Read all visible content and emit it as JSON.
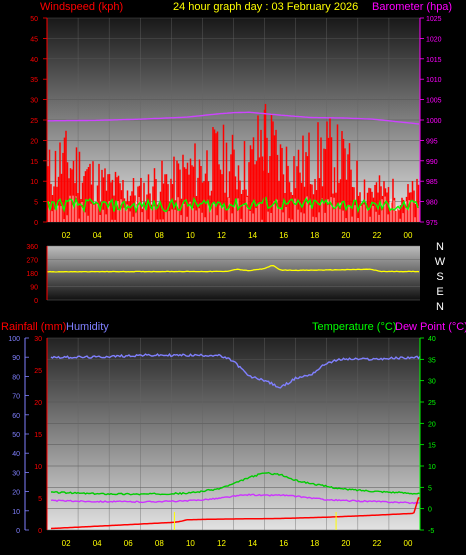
{
  "header": {
    "left": "Windspeed (kph)",
    "center": "24 hour graph day : 03 February 2026",
    "right": "Barometer (hpa)"
  },
  "section3": {
    "rain_label": "Rainfall (mm)",
    "humidity_label": "Humidity",
    "temp_label": "Temperature (°C)",
    "dew_label": "Dew Point (°C)"
  },
  "compass": [
    "N",
    "W",
    "S",
    "E",
    "N"
  ],
  "colors": {
    "wind": "#ff0000",
    "gust": "#ffffff",
    "avg_wind": "#00ff00",
    "barometer": "#cc44ff",
    "direction": "#ffff00",
    "rain": "#ff0000",
    "humidity": "#8080ff",
    "temperature": "#00cc00",
    "dewpoint": "#cc33ff",
    "rain_hour_marker": "#ffff00",
    "axis_left": "#ff0000",
    "axis_right": "#ff00ff",
    "axis_time": "#ffff00"
  },
  "chart_data": [
    {
      "type": "line",
      "title": "24 hour graph day : 03 February 2026",
      "x_ticks": [
        "02",
        "04",
        "06",
        "08",
        "10",
        "12",
        "14",
        "16",
        "18",
        "20",
        "22",
        "00"
      ],
      "y_left": {
        "label": "Windspeed (kph)",
        "ticks": [
          0,
          5,
          10,
          15,
          20,
          25,
          30,
          35,
          40,
          45,
          50
        ],
        "range": [
          0,
          50
        ]
      },
      "y_right": {
        "label": "Barometer (hpa)",
        "ticks": [
          975,
          980,
          985,
          990,
          995,
          1000,
          1005,
          1010,
          1015,
          1020,
          1025
        ],
        "range": [
          975,
          1025
        ]
      },
      "series": [
        {
          "name": "Barometer",
          "axis": "right",
          "hours": [
            0,
            3,
            6,
            9,
            11,
            12,
            13,
            15,
            17,
            19,
            21,
            23,
            24
          ],
          "values": [
            999.8,
            999.9,
            1000.2,
            1000.7,
            1001.5,
            1001.8,
            1001.9,
            1001.2,
            1000.6,
            1000.5,
            1000.2,
            999.4,
            999.0
          ]
        },
        {
          "name": "Wind",
          "axis": "left",
          "hours": [
            0,
            1,
            2,
            3,
            4,
            5,
            6,
            7,
            8,
            9,
            10,
            11,
            12,
            13,
            14,
            15,
            16,
            17,
            18,
            19,
            20,
            21,
            22,
            23,
            24
          ],
          "values": [
            13,
            17,
            15,
            12,
            10,
            9,
            8,
            11,
            11,
            14,
            15,
            18,
            16,
            15,
            24,
            17,
            15,
            17,
            19,
            17,
            11,
            9,
            8,
            7,
            8
          ]
        },
        {
          "name": "Gust peak",
          "axis": "left",
          "hours": [
            14.0
          ],
          "values": [
            27.5
          ]
        }
      ]
    },
    {
      "type": "line",
      "y_left": {
        "ticks": [
          0,
          90,
          180,
          270,
          360
        ],
        "range": [
          0,
          360
        ]
      },
      "series": [
        {
          "name": "Wind direction",
          "hours": [
            0,
            8,
            11.5,
            12.2,
            13,
            14,
            14.5,
            15,
            16,
            18,
            20.8,
            21.5,
            24
          ],
          "values": [
            188,
            190,
            190,
            205,
            195,
            210,
            232,
            200,
            198,
            200,
            205,
            190,
            190
          ]
        }
      ]
    },
    {
      "type": "line",
      "x_ticks": [
        "02",
        "04",
        "06",
        "08",
        "10",
        "12",
        "14",
        "16",
        "18",
        "20",
        "22",
        "00"
      ],
      "y_left_rain": {
        "label": "Rainfall (mm)",
        "ticks": [
          0,
          5,
          10,
          15,
          20,
          25,
          30
        ],
        "range": [
          0,
          30
        ]
      },
      "y_left_humidity": {
        "label": "Humidity",
        "ticks": [
          0,
          10,
          20,
          30,
          40,
          50,
          60,
          70,
          80,
          90,
          100
        ],
        "range": [
          0,
          100
        ]
      },
      "y_right": {
        "label": "Temperature (°C) Dew Point (°C)",
        "ticks": [
          -5,
          0,
          5,
          10,
          15,
          20,
          25,
          30,
          35,
          40
        ],
        "range": [
          -5,
          40
        ]
      },
      "series": [
        {
          "name": "Humidity",
          "hours": [
            0,
            3,
            6,
            9,
            11,
            12,
            13,
            14,
            15,
            16,
            17,
            18,
            19,
            21,
            24
          ],
          "values": [
            90,
            90,
            91,
            91,
            91,
            88,
            80,
            78,
            74,
            79,
            81,
            87,
            89,
            89,
            90
          ]
        },
        {
          "name": "Temperature",
          "hours": [
            0,
            3,
            6,
            9,
            11,
            12,
            13,
            14,
            15,
            16,
            17,
            18,
            19,
            21,
            24
          ],
          "values": [
            3.9,
            3.5,
            3.4,
            3.6,
            4.6,
            5.8,
            7.3,
            8.4,
            8.0,
            6.6,
            5.9,
            5.2,
            4.6,
            4.1,
            3.5
          ]
        },
        {
          "name": "Dew Point",
          "hours": [
            0,
            3,
            6,
            9,
            11,
            12,
            13,
            14,
            15,
            16,
            17,
            18,
            19,
            21,
            24
          ],
          "values": [
            1.9,
            1.7,
            1.6,
            1.8,
            2.4,
            2.9,
            3.3,
            3.1,
            3.2,
            2.9,
            2.5,
            2.1,
            1.9,
            1.7,
            1.3
          ]
        },
        {
          "name": "Rainfall",
          "hours": [
            0,
            8.2,
            8.7,
            9,
            11,
            15,
            18,
            19,
            21,
            23.6,
            23.9
          ],
          "values": [
            0.2,
            1.2,
            1.4,
            1.6,
            1.7,
            1.8,
            2.0,
            2.1,
            2.3,
            2.6,
            5.0
          ]
        }
      ]
    }
  ]
}
